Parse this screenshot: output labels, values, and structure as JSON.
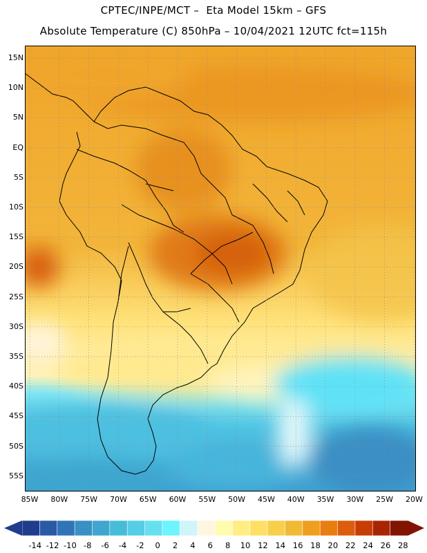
{
  "header": {
    "title_line1": "CPTEC/INPE/MCT –  Eta Model 15km – GFS",
    "title_line2": "Absolute Temperature (C) 850hPa – 10/04/2021 12UTC fct=115h"
  },
  "map": {
    "region": "South America",
    "field": "temperature-850hPa",
    "lat_labels": [
      "15N",
      "10N",
      "5N",
      "EQ",
      "5S",
      "10S",
      "15S",
      "20S",
      "25S",
      "30S",
      "35S",
      "40S",
      "45S",
      "50S",
      "55S"
    ],
    "lon_labels": [
      "85W",
      "80W",
      "75W",
      "70W",
      "65W",
      "60W",
      "55W",
      "50W",
      "45W",
      "40W",
      "35W",
      "30W",
      "25W",
      "20W"
    ],
    "grid": "dotted"
  },
  "colorbar": {
    "labels": [
      "-14",
      "-12",
      "-10",
      "-8",
      "-6",
      "-4",
      "-2",
      "0",
      "2",
      "4",
      "6",
      "8",
      "10",
      "12",
      "14",
      "16",
      "18",
      "20",
      "22",
      "24",
      "26",
      "28"
    ],
    "colors": [
      "#1f3d8c",
      "#2a5aa6",
      "#2f75b6",
      "#3a8fc4",
      "#3ea6cf",
      "#46bcd9",
      "#56cde6",
      "#66e0f0",
      "#6ef4ff",
      "#cff4fa",
      "#fff6e0",
      "#fffbb0",
      "#ffee84",
      "#ffe066",
      "#f7cf4a",
      "#f2b936",
      "#ef9f1e",
      "#e87d10",
      "#dc5d0c",
      "#c63e06",
      "#a82503",
      "#811403"
    ]
  }
}
